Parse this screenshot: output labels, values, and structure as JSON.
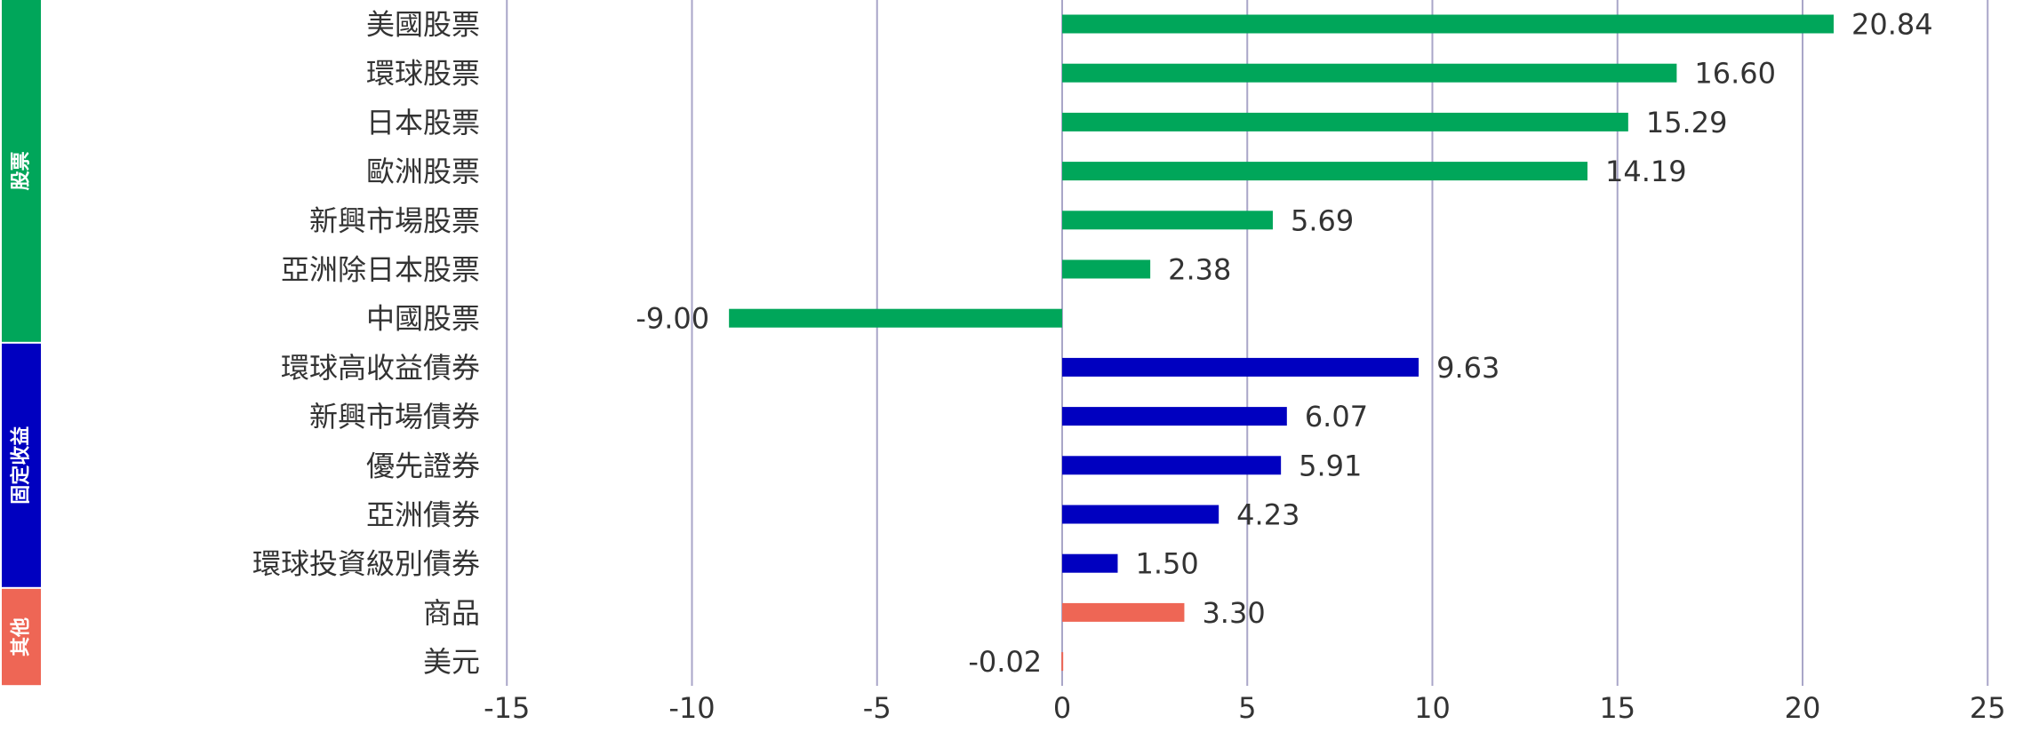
{
  "chart_data": {
    "type": "bar",
    "orientation": "horizontal",
    "title": "",
    "xlabel": "",
    "ylabel": "",
    "xlim": [
      -15,
      25
    ],
    "xticks": [
      -15,
      -10,
      -5,
      0,
      5,
      10,
      15,
      20,
      25
    ],
    "grid": "vertical",
    "groups": [
      {
        "name": "股票",
        "color": "#00A65A",
        "start": 0,
        "end": 6
      },
      {
        "name": "固定收益",
        "color": "#0000C0",
        "start": 7,
        "end": 11
      },
      {
        "name": "其他",
        "color": "#EE6655",
        "start": 12,
        "end": 13
      }
    ],
    "categories": [
      "美國股票",
      "環球股票",
      "日本股票",
      "歐洲股票",
      "新興市場股票",
      "亞洲除日本股票",
      "中國股票",
      "環球高收益債券",
      "新興市場債券",
      "優先證券",
      "亞洲債券",
      "環球投資級別債券",
      "商品",
      "美元"
    ],
    "values": [
      20.84,
      16.6,
      15.29,
      14.19,
      5.69,
      2.38,
      -9.0,
      9.63,
      6.07,
      5.91,
      4.23,
      1.5,
      3.3,
      -0.02
    ],
    "value_labels": [
      "20.84",
      "16.60",
      "15.29",
      "14.19",
      "5.69",
      "2.38",
      "-9.00",
      "9.63",
      "6.07",
      "5.91",
      "4.23",
      "1.50",
      "3.30",
      "-0.02"
    ],
    "bar_groups": [
      "股票",
      "股票",
      "股票",
      "股票",
      "股票",
      "股票",
      "股票",
      "固定收益",
      "固定收益",
      "固定收益",
      "固定收益",
      "固定收益",
      "其他",
      "其他"
    ]
  },
  "colors": {
    "grid": "#A9A6C8",
    "text": "#333333",
    "background": "#FFFFFF"
  }
}
